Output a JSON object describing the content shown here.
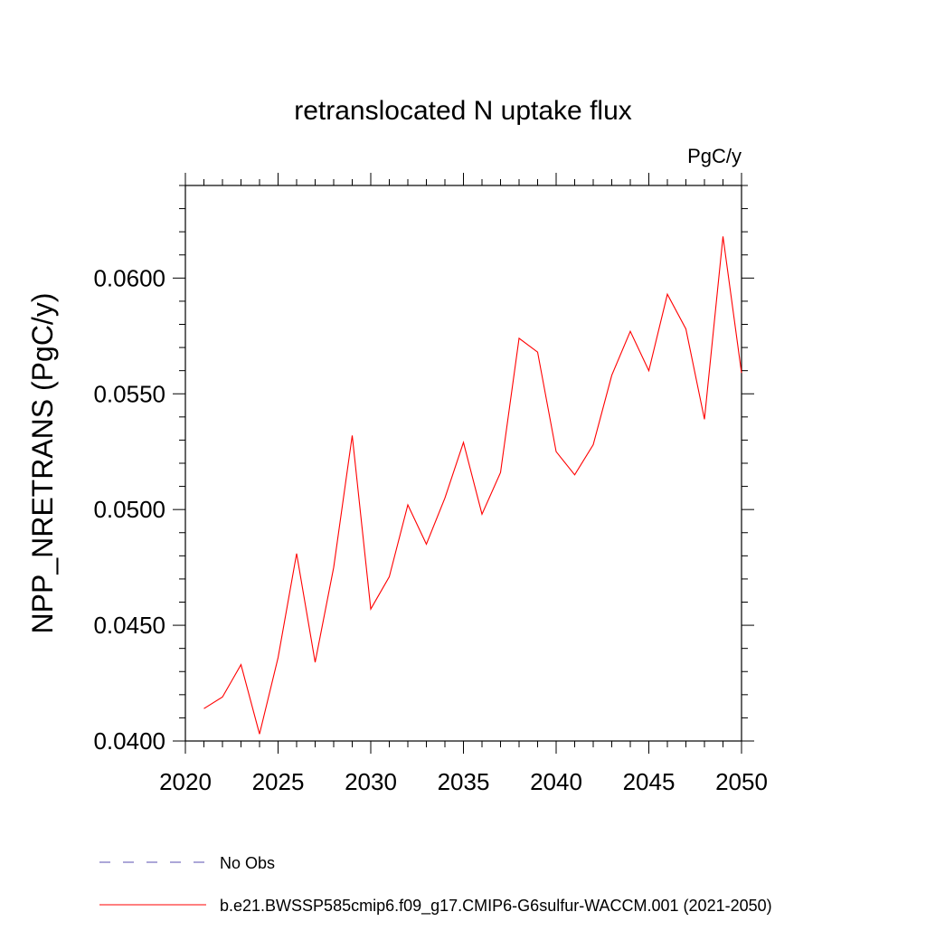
{
  "chart_data": {
    "type": "line",
    "title": "retranslocated N uptake flux",
    "units_label": "PgC/y",
    "ylabel": "NPP_NRETRANS  (PgC/y)",
    "xlabel": "",
    "xlim": [
      2020,
      2050
    ],
    "ylim": [
      0.04,
      0.064
    ],
    "x_ticks": [
      2020,
      2025,
      2030,
      2035,
      2040,
      2045,
      2050
    ],
    "y_ticks": [
      0.04,
      0.045,
      0.05,
      0.055,
      0.06
    ],
    "y_tick_labels": [
      "0.0400",
      "0.0450",
      "0.0500",
      "0.0550",
      "0.0600"
    ],
    "grid": false,
    "legend_position": "bottom",
    "series": [
      {
        "name": "b.e21.BWSSP585cmip6.f09_g17.CMIP6-G6sulfur-WACCM.001 (2021-2050)",
        "color": "#ff0000",
        "style": "solid",
        "x": [
          2021,
          2022,
          2023,
          2024,
          2025,
          2026,
          2027,
          2028,
          2029,
          2030,
          2031,
          2032,
          2033,
          2034,
          2035,
          2036,
          2037,
          2038,
          2039,
          2040,
          2041,
          2042,
          2043,
          2044,
          2045,
          2046,
          2047,
          2048,
          2049,
          2050
        ],
        "values": [
          0.0414,
          0.0419,
          0.0433,
          0.0403,
          0.0436,
          0.0481,
          0.0434,
          0.0475,
          0.0532,
          0.0457,
          0.0471,
          0.0502,
          0.0485,
          0.0505,
          0.0529,
          0.0498,
          0.0516,
          0.0574,
          0.0568,
          0.0525,
          0.0515,
          0.0528,
          0.0558,
          0.0577,
          0.056,
          0.0593,
          0.0578,
          0.0539,
          0.0618,
          0.0559
        ]
      }
    ],
    "legend": [
      {
        "label": "No Obs",
        "color": "#5a4fb0",
        "style": "dashed"
      },
      {
        "label": "b.e21.BWSSP585cmip6.f09_g17.CMIP6-G6sulfur-WACCM.001 (2021-2050)",
        "color": "#ff0000",
        "style": "solid"
      }
    ]
  }
}
